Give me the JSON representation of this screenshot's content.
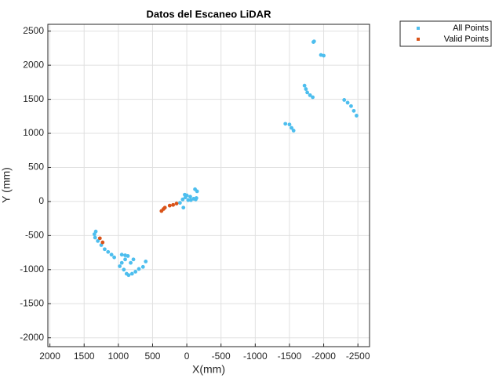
{
  "chart_data": {
    "type": "scatter",
    "title": "Datos del Escaneo LiDAR",
    "x_label": "X(mm)",
    "y_label": "Y (mm)",
    "xlim": [
      2030,
      -2670
    ],
    "ylim": [
      -2130,
      2600
    ],
    "xticks": [
      2000,
      1500,
      1000,
      500,
      0,
      -500,
      -1000,
      -1500,
      -2000,
      -2500
    ],
    "yticks": [
      -2000,
      -1500,
      -1000,
      -500,
      0,
      500,
      1000,
      1500,
      2000,
      2500
    ],
    "grid": true,
    "legend": "outside-northeast",
    "series": [
      {
        "name": "All Points",
        "color": "#4dbeee",
        "x": [
          1330,
          1350,
          1340,
          1300,
          1250,
          1200,
          1150,
          1100,
          1060,
          950,
          900,
          860,
          900,
          950,
          980,
          920,
          880,
          850,
          800,
          750,
          700,
          640,
          600,
          820,
          780,
          30,
          0,
          -50,
          -100,
          -130,
          -150,
          -120,
          20,
          -20,
          60,
          100,
          50,
          -60,
          -140,
          -1440,
          -1500,
          -1530,
          -1560,
          -1720,
          -1740,
          -1760,
          -1800,
          -1840,
          -2300,
          -2350,
          -2400,
          -2440,
          -2480,
          -1960,
          -2000,
          -1860,
          -1850
        ],
        "values": [
          -440,
          -480,
          -530,
          -580,
          -640,
          -700,
          -740,
          -780,
          -820,
          -780,
          -790,
          -800,
          -850,
          -900,
          -950,
          -1000,
          -1060,
          -1080,
          -1060,
          -1030,
          -990,
          -960,
          -880,
          -900,
          -850,
          100,
          90,
          70,
          40,
          30,
          150,
          180,
          60,
          20,
          30,
          -20,
          -90,
          20,
          50,
          1140,
          1130,
          1080,
          1040,
          1700,
          1650,
          1600,
          1560,
          1530,
          1490,
          1450,
          1400,
          1330,
          1260,
          2150,
          2140,
          2350,
          2340
        ]
      },
      {
        "name": "Valid Points",
        "color": "#d95319",
        "x": [
          1270,
          1230,
          370,
          340,
          320,
          250,
          200,
          150
        ],
        "values": [
          -540,
          -600,
          -140,
          -110,
          -90,
          -60,
          -50,
          -30
        ]
      }
    ]
  }
}
